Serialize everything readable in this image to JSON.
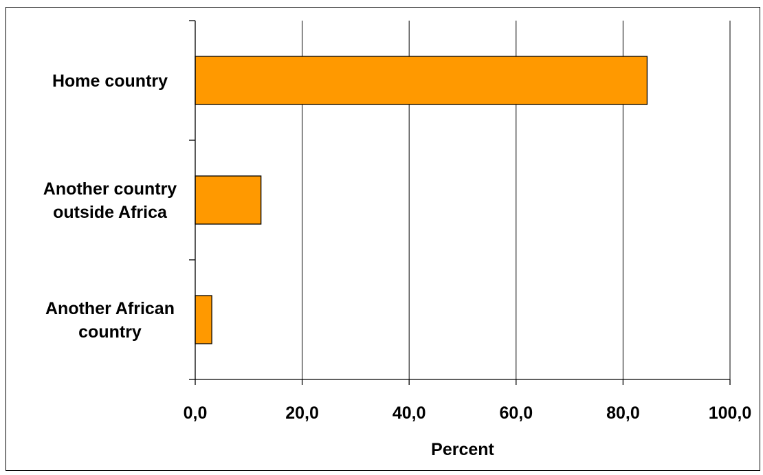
{
  "chart_data": {
    "type": "bar",
    "orientation": "horizontal",
    "categories": [
      "Home country",
      "Another country outside Africa",
      "Another African country"
    ],
    "category_lines": [
      [
        "Home country"
      ],
      [
        "Another country",
        "outside Africa"
      ],
      [
        "Another African",
        "country"
      ]
    ],
    "values": [
      84.5,
      12.3,
      3.1
    ],
    "title": "",
    "xlabel": "Percent",
    "ylabel": "",
    "xlim": [
      0,
      100
    ],
    "xticks": [
      0,
      20,
      40,
      60,
      80,
      100
    ],
    "xtick_labels": [
      "0,0",
      "20,0",
      "40,0",
      "60,0",
      "80,0",
      "100,0"
    ],
    "grid": "vertical",
    "legend": "none",
    "colors": {
      "bar_fill": "#FF9900",
      "bar_stroke": "#000000",
      "grid": "#000000",
      "axis": "#000000",
      "background": "#ffffff"
    }
  }
}
